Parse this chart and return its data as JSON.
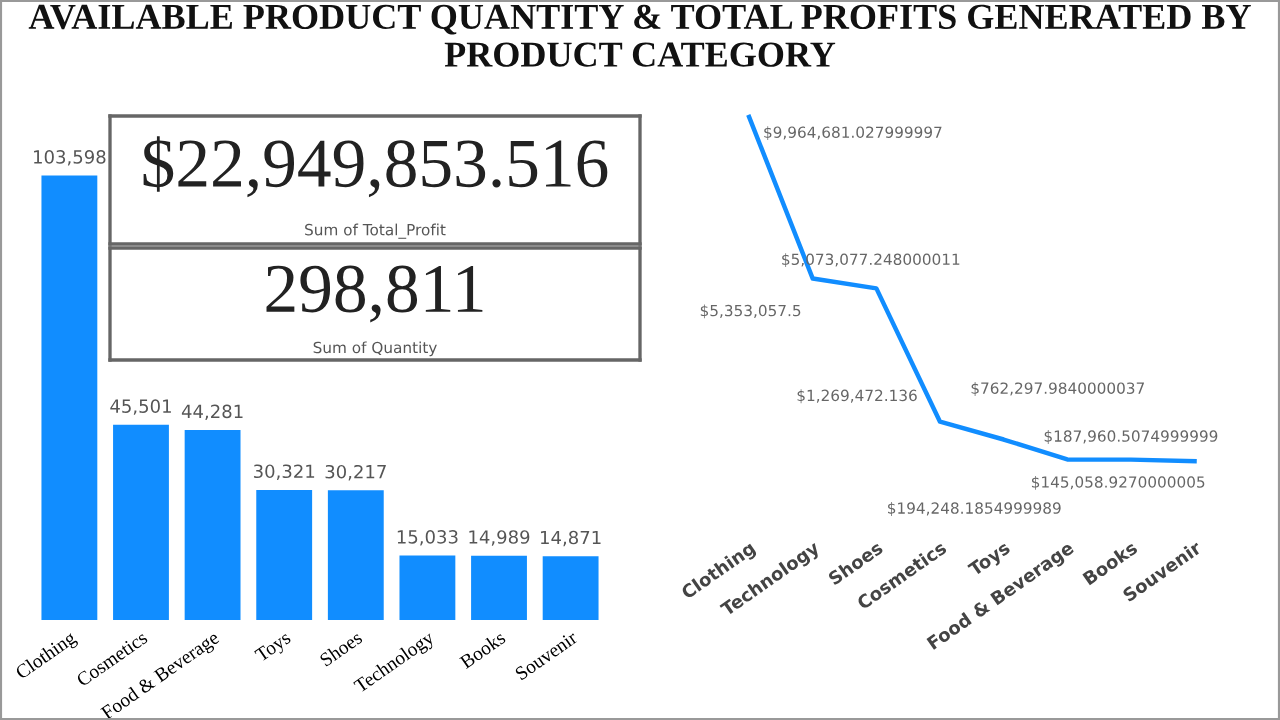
{
  "chart_data": [
    {
      "type": "bar",
      "title": "AVAILABLE PRODUCT QUANTITY & TOTAL PROFITS GENERATED BY PRODUCT CATEGORY",
      "categories": [
        "Clothing",
        "Cosmetics",
        "Food & Beverage",
        "Toys",
        "Shoes",
        "Technology",
        "Books",
        "Souvenir"
      ],
      "values": [
        103598,
        45501,
        44281,
        30321,
        30217,
        15033,
        14989,
        14871
      ],
      "value_labels": [
        "103,598",
        "45,501",
        "44,281",
        "30,321",
        "30,217",
        "15,033",
        "14,989",
        "14,871"
      ],
      "color": "#118dff",
      "tick_labels": "x",
      "grid": false,
      "legend": false
    },
    {
      "type": "other",
      "title": "$22,949,853.516",
      "subtitle": "Sum of Total_Profit"
    },
    {
      "type": "other",
      "title": "298,811",
      "subtitle": "Sum of Quantity"
    },
    {
      "type": "line",
      "categories": [
        "Clothing",
        "Technology",
        "Shoes",
        "Cosmetics",
        "Toys",
        "Food & Beverage",
        "Books",
        "Souvenir"
      ],
      "values": [
        9964681.027999997,
        5353057.5,
        5073077.248000011,
        1269472.136,
        762297.9840000037,
        194248.1854999989,
        187960.5074999999,
        145058.9270000005
      ],
      "value_labels": [
        "$9,964,681.027999997",
        "$5,353,057.5",
        "$5,073,077.248000011",
        "$1,269,472.136",
        "$762,297.9840000037",
        "$194,248.1854999989",
        "$187,960.5074999999",
        "$145,058.9270000005"
      ],
      "color": "#118dff",
      "tick_labels": "x",
      "grid": false,
      "legend": false,
      "marker": "none",
      "line_style": "solid"
    }
  ]
}
